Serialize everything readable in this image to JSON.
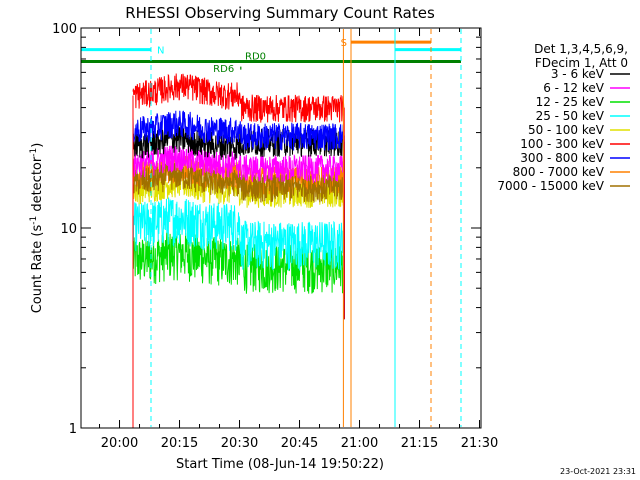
{
  "chart_data": {
    "type": "line",
    "title": "RHESSI Observing Summary Count Rates",
    "xlabel": "Start Time (08-Jun-14 19:50:22)",
    "ylabel": "Count Rate (s",
    "ylabel_sup": "-1",
    "ylabel_rest": " detector",
    "ylabel_sup2": "-1",
    "ylabel_end": ")",
    "x_unit": "minutes since 19:50:22",
    "xlim": [
      0,
      100
    ],
    "ylim": [
      1,
      100
    ],
    "yscale": "log",
    "x_ticks": [
      {
        "t": 9.63,
        "label": "20:00"
      },
      {
        "t": 24.63,
        "label": "20:15"
      },
      {
        "t": 39.63,
        "label": "20:30"
      },
      {
        "t": 54.63,
        "label": "20:45"
      },
      {
        "t": 69.63,
        "label": "21:00"
      },
      {
        "t": 84.63,
        "label": "21:15"
      },
      {
        "t": 99.63,
        "label": "21:30"
      }
    ],
    "y_ticks": [
      {
        "v": 1,
        "label": "1"
      },
      {
        "v": 10,
        "label": "10"
      },
      {
        "v": 100,
        "label": "100"
      }
    ],
    "legend_header": [
      "Det 1,3,4,5,6,9,",
      "FDecim 1, Att 0"
    ],
    "series": [
      {
        "name": "3 - 6 keV",
        "color": "#000000",
        "level1": 26,
        "level2": 27
      },
      {
        "name": "6 - 12 keV",
        "color": "#ff00ff",
        "level1": 21,
        "level2": 20
      },
      {
        "name": "12 - 25 keV",
        "color": "#00e000",
        "level1": 7,
        "level2": 6.5
      },
      {
        "name": "25 - 50 keV",
        "color": "#00ffff",
        "level1": 10.5,
        "level2": 8.5
      },
      {
        "name": "50 - 100 keV",
        "color": "#e0e000",
        "level1": 15.5,
        "level2": 15
      },
      {
        "name": "100 - 300 keV",
        "color": "#ff0000",
        "level1": 46,
        "level2": 40
      },
      {
        "name": "300 - 800 keV",
        "color": "#0000ff",
        "level1": 31,
        "level2": 29
      },
      {
        "name": "800 - 7000 keV",
        "color": "#ff8000",
        "level1": 18.5,
        "level2": 17.5
      },
      {
        "name": "7000 - 15000 keV",
        "color": "#a07000",
        "level1": 17,
        "level2": 16
      }
    ],
    "data_span": {
      "start": 13.0,
      "end": 65.8,
      "gap": 39.9
    },
    "flags": [
      {
        "label": "N",
        "color": "#00ffff",
        "y": 78,
        "start": 0,
        "end": 17.5
      },
      {
        "label": "",
        "color": "#00ffff",
        "y": 78,
        "start": 78.5,
        "end": 95
      },
      {
        "label": "S",
        "color": "#ff8000",
        "y": 85,
        "start": 67.5,
        "end": 87.5
      },
      {
        "label": "RD0",
        "color": "#008000",
        "y": 68,
        "start": 0,
        "end": 95
      },
      {
        "label": "RD6",
        "color": "#008000",
        "y": 63,
        "start": 39.8,
        "end": 40.1
      }
    ],
    "vlines": [
      {
        "t": 17.5,
        "color": "#00ffff",
        "dash": true
      },
      {
        "t": 67.5,
        "color": "#ff8000",
        "dash": false
      },
      {
        "t": 78.5,
        "color": "#00ffff",
        "dash": false
      },
      {
        "t": 87.5,
        "color": "#ff8000",
        "dash": true
      },
      {
        "t": 95,
        "color": "#00ffff",
        "dash": true
      },
      {
        "t": 65.6,
        "color": "#ff8000",
        "dash": false
      }
    ]
  },
  "footer_date": "23-Oct-2021 23:31"
}
